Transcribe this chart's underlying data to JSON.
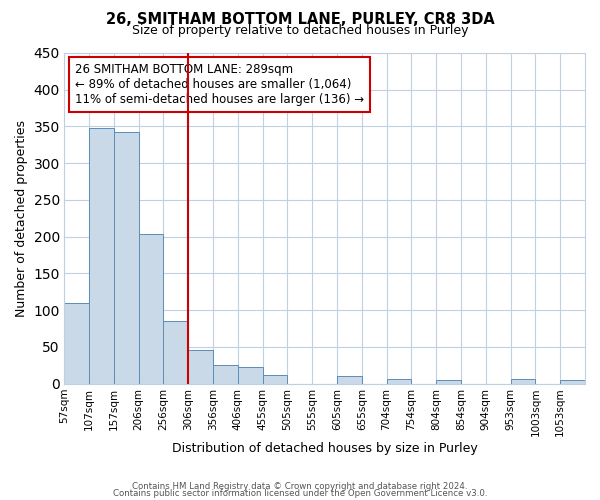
{
  "title": "26, SMITHAM BOTTOM LANE, PURLEY, CR8 3DA",
  "subtitle": "Size of property relative to detached houses in Purley",
  "xlabel": "Distribution of detached houses by size in Purley",
  "ylabel": "Number of detached properties",
  "bar_color": "#c9d9e8",
  "bar_edge_color": "#5b8db8",
  "background_color": "#ffffff",
  "grid_color": "#c0d0e0",
  "annotation_box_color": "#ffffff",
  "annotation_box_edge": "#cc0000",
  "vline_color": "#cc0000",
  "vline_x": 5.0,
  "bin_labels": [
    "57sqm",
    "107sqm",
    "157sqm",
    "206sqm",
    "256sqm",
    "306sqm",
    "356sqm",
    "406sqm",
    "455sqm",
    "505sqm",
    "555sqm",
    "605sqm",
    "655sqm",
    "704sqm",
    "754sqm",
    "804sqm",
    "854sqm",
    "904sqm",
    "953sqm",
    "1003sqm",
    "1053sqm"
  ],
  "bar_heights": [
    110,
    348,
    343,
    204,
    85,
    46,
    25,
    22,
    12,
    0,
    0,
    10,
    0,
    6,
    0,
    5,
    0,
    0,
    6,
    0,
    5
  ],
  "ylim": [
    0,
    450
  ],
  "yticks": [
    0,
    50,
    100,
    150,
    200,
    250,
    300,
    350,
    400,
    450
  ],
  "annotation_line1": "26 SMITHAM BOTTOM LANE: 289sqm",
  "annotation_line2": "← 89% of detached houses are smaller (1,064)",
  "annotation_line3": "11% of semi-detached houses are larger (136) →",
  "footer_line1": "Contains HM Land Registry data © Crown copyright and database right 2024.",
  "footer_line2": "Contains public sector information licensed under the Open Government Licence v3.0."
}
